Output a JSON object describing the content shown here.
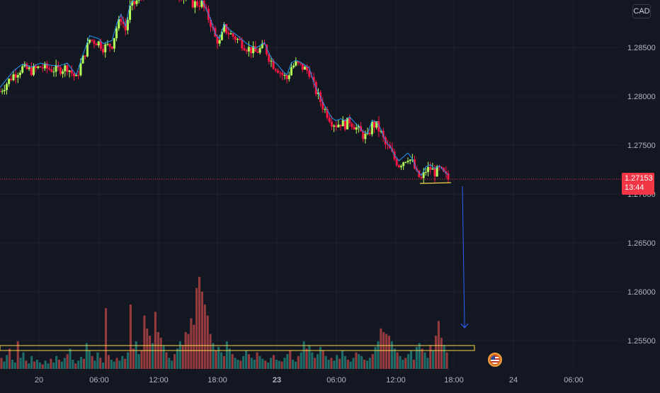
{
  "header": {
    "currency": "CAD"
  },
  "price_tag": {
    "price": "1.27153",
    "countdown": "13:44"
  },
  "event_flag": {
    "icon": "us-flag-icon"
  },
  "colors": {
    "bull": "#26a69a",
    "bear": "#ef5350",
    "bull_candle": "#b2ff59",
    "bear_candle": "#ff1744",
    "ma": "#2962ff",
    "annotation": "#f9d847",
    "arrow": "#2962ff",
    "last_price_line": "#f23645"
  },
  "chart_data": {
    "type": "candlestick",
    "title": "",
    "y_axis": {
      "ticks": [
        1.255,
        1.26,
        1.265,
        1.27,
        1.275,
        1.28,
        1.285
      ],
      "tick_labels": [
        "1.25500",
        "1.26000",
        "1.26500",
        "1.27000",
        "1.27500",
        "1.28000",
        "1.28500"
      ],
      "range": [
        1.2523,
        1.2896
      ]
    },
    "x_axis": {
      "tick_labels": [
        "20",
        "06:00",
        "12:00",
        "18:00",
        "23",
        "06:00",
        "12:00",
        "18:00",
        "24",
        "06:00"
      ]
    },
    "last_price": 1.27153,
    "grid": true,
    "price_path": [
      [
        0,
        1.2805
      ],
      [
        3,
        1.2822
      ],
      [
        5,
        1.2829
      ],
      [
        7,
        1.2826
      ],
      [
        9,
        1.283
      ],
      [
        11,
        1.2828
      ],
      [
        13,
        1.2827
      ],
      [
        15,
        1.283
      ],
      [
        16,
        1.2824
      ],
      [
        17,
        1.2818
      ],
      [
        18,
        1.2832
      ],
      [
        20,
        1.2858
      ],
      [
        22,
        1.2855
      ],
      [
        23,
        1.285
      ],
      [
        25,
        1.2853
      ],
      [
        26,
        1.287
      ],
      [
        27,
        1.288
      ],
      [
        28,
        1.2868
      ],
      [
        29,
        1.289
      ],
      [
        31,
        1.29
      ],
      [
        33,
        1.291
      ],
      [
        36,
        1.2925
      ],
      [
        38,
        1.2915
      ],
      [
        40,
        1.2905
      ],
      [
        42,
        1.29
      ],
      [
        43,
        1.2895
      ],
      [
        45,
        1.2895
      ],
      [
        46,
        1.2885
      ],
      [
        47,
        1.2875
      ],
      [
        48,
        1.286
      ],
      [
        49,
        1.2855
      ],
      [
        50,
        1.287
      ],
      [
        51,
        1.2865
      ],
      [
        53,
        1.2858
      ],
      [
        55,
        1.285
      ],
      [
        57,
        1.2845
      ],
      [
        58,
        1.2848
      ],
      [
        59,
        1.2851
      ],
      [
        60,
        1.284
      ],
      [
        61,
        1.2832
      ],
      [
        62,
        1.2828
      ],
      [
        63,
        1.2822
      ],
      [
        64,
        1.2818
      ],
      [
        65,
        1.283
      ],
      [
        66,
        1.2833
      ],
      [
        67,
        1.2831
      ],
      [
        68,
        1.2828
      ],
      [
        69,
        1.2825
      ],
      [
        70,
        1.281
      ],
      [
        71,
        1.28
      ],
      [
        72,
        1.279
      ],
      [
        73,
        1.2782
      ],
      [
        74,
        1.2774
      ],
      [
        75,
        1.2771
      ],
      [
        76,
        1.2773
      ],
      [
        77,
        1.2771
      ],
      [
        78,
        1.2775
      ],
      [
        79,
        1.277
      ],
      [
        80,
        1.2765
      ],
      [
        81,
        1.276
      ],
      [
        82,
        1.2758
      ],
      [
        83,
        1.2771
      ],
      [
        84,
        1.277
      ],
      [
        85,
        1.2762
      ],
      [
        86,
        1.275
      ],
      [
        87,
        1.2745
      ],
      [
        88,
        1.2736
      ],
      [
        89,
        1.273
      ],
      [
        90,
        1.2734
      ],
      [
        91,
        1.2738
      ],
      [
        92,
        1.2732
      ],
      [
        93,
        1.272
      ],
      [
        94,
        1.2715
      ],
      [
        95,
        1.2724
      ],
      [
        96,
        1.2726
      ],
      [
        97,
        1.2722
      ],
      [
        98,
        1.2725
      ],
      [
        99,
        1.272
      ],
      [
        100,
        1.27153
      ]
    ],
    "volume": [
      12,
      8,
      15,
      22,
      10,
      7,
      30,
      12,
      18,
      9,
      6,
      14,
      8,
      10,
      7,
      5,
      9,
      6,
      11,
      7,
      14,
      10,
      8,
      12,
      16,
      22,
      10,
      6,
      9,
      13,
      11,
      28,
      20,
      14,
      9,
      18,
      12,
      7,
      66,
      15,
      10,
      8,
      12,
      9,
      14,
      11,
      18,
      70,
      22,
      30,
      16,
      20,
      58,
      44,
      36,
      28,
      62,
      40,
      34,
      25,
      18,
      12,
      9,
      16,
      22,
      30,
      26,
      40,
      38,
      55,
      48,
      88,
      100,
      84,
      70,
      58,
      38,
      28,
      20,
      24,
      18,
      14,
      30,
      22,
      16,
      12,
      10,
      9,
      14,
      20,
      16,
      12,
      10,
      18,
      14,
      11,
      9,
      7,
      12,
      15,
      10,
      9,
      8,
      12,
      16,
      20,
      10,
      8,
      14,
      18,
      30,
      22,
      26,
      18,
      12,
      16,
      24,
      20,
      14,
      10,
      12,
      9,
      15,
      11,
      20,
      14,
      10,
      8,
      12,
      18,
      16,
      14,
      10,
      9,
      12,
      16,
      24,
      30,
      44,
      40,
      38,
      36,
      30,
      22,
      18,
      14,
      10,
      12,
      16,
      20,
      10,
      24,
      28,
      22,
      18,
      12,
      26,
      20,
      36,
      52,
      34,
      26,
      18
    ]
  }
}
